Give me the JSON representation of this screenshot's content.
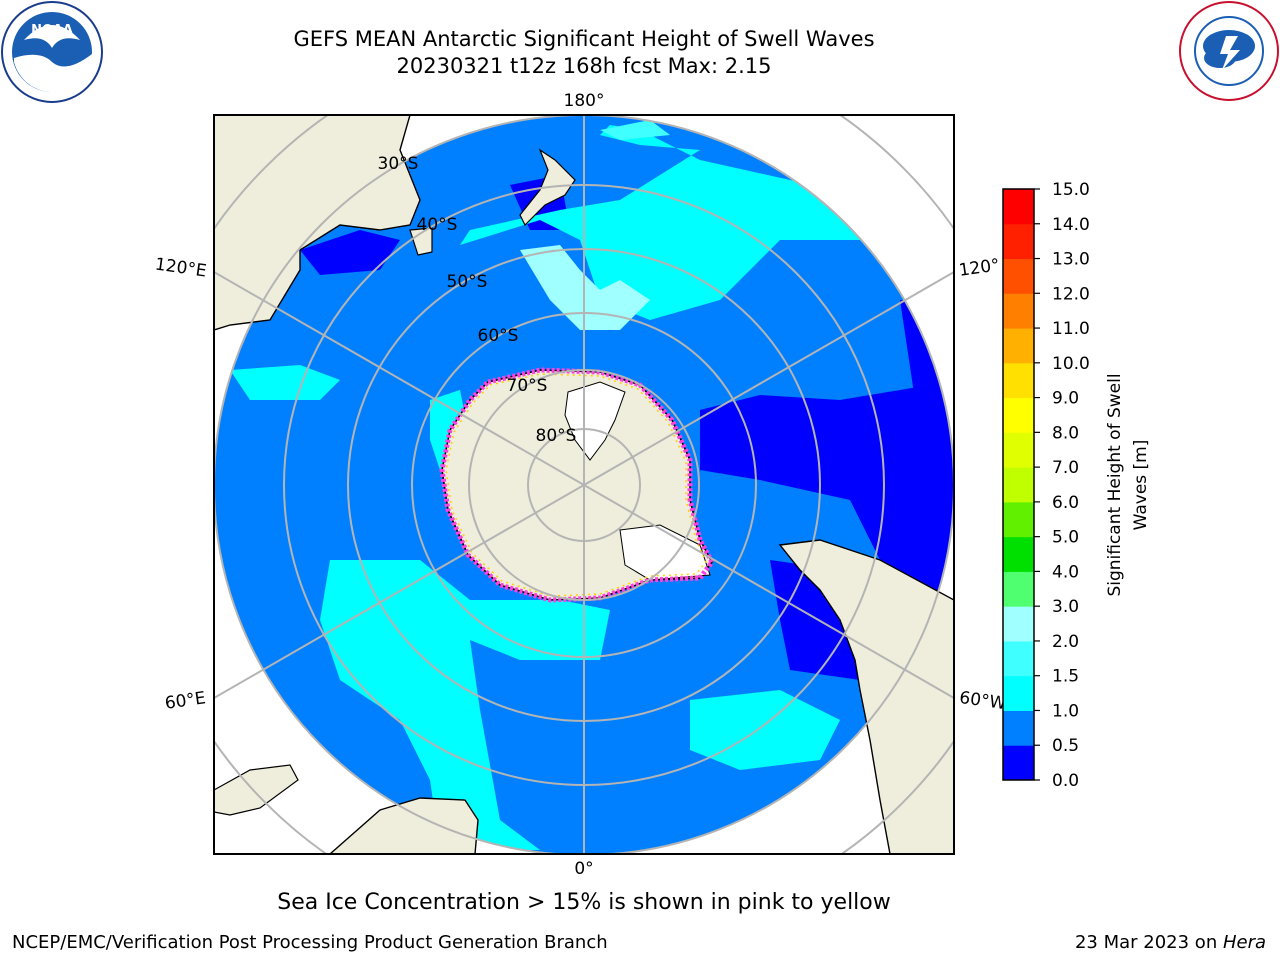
{
  "header": {
    "title_line1": "GEFS MEAN Antarctic Significant Height of Swell Waves",
    "title_line2": "20230321 t12z 168h fcst   Max: 2.15"
  },
  "logos": {
    "left": "noaa-logo",
    "right": "nws-logo"
  },
  "map": {
    "projection": "south-polar-stereographic",
    "longitude_labels": {
      "top": "180°",
      "bottom": "0°",
      "upper_left": "120°E",
      "upper_right": "120°",
      "lower_left": "60°E",
      "lower_right": "60°W"
    },
    "latitude_labels": [
      "30°S",
      "40°S",
      "50°S",
      "60°S",
      "70°S",
      "80°S"
    ],
    "colors": {
      "land": "#efeedc",
      "ice_shelf": "#ffffff",
      "grid": "#b4b4b4"
    }
  },
  "colorbar": {
    "label": "Significant Height of Swell Waves [m]",
    "ticks": [
      "0.0",
      "0.5",
      "1.0",
      "1.5",
      "2.0",
      "3.0",
      "4.0",
      "5.0",
      "6.0",
      "7.0",
      "8.0",
      "9.0",
      "10.0",
      "11.0",
      "12.0",
      "13.0",
      "14.0",
      "15.0"
    ],
    "colors": [
      "#0000ff",
      "#0080ff",
      "#00ffff",
      "#40ffff",
      "#a0ffff",
      "#50ff70",
      "#00e000",
      "#60f000",
      "#c0ff00",
      "#e0ff00",
      "#ffff00",
      "#ffe000",
      "#ffb000",
      "#ff8000",
      "#ff5000",
      "#ff2000",
      "#ff0000"
    ]
  },
  "ice_note": "Sea Ice Concentration > 15% is shown in pink to yellow",
  "footer": {
    "left": "NCEP/EMC/Verification Post Processing Product Generation Branch",
    "right_prefix": "23 Mar 2023 on ",
    "right_host": "Hera"
  }
}
